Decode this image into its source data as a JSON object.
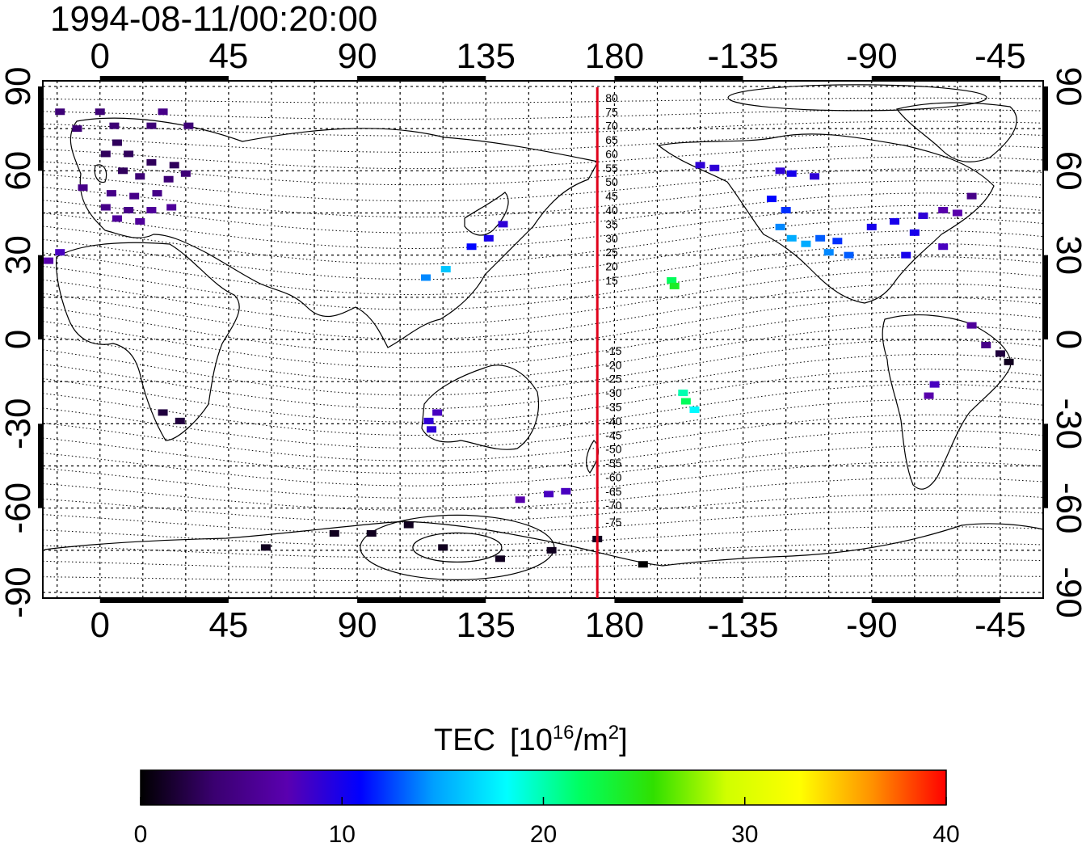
{
  "timestamp": "1994-08-11/00:20:00",
  "axes": {
    "lon_ticks": [
      "0",
      "45",
      "90",
      "135",
      "180",
      "-135",
      "-90",
      "-45"
    ],
    "lon_values": [
      0,
      45,
      90,
      135,
      180,
      225,
      270,
      315
    ],
    "lat_ticks": [
      "90",
      "60",
      "30",
      "0",
      "-30",
      "-60",
      "-90"
    ],
    "lat_values": [
      90,
      60,
      30,
      0,
      -30,
      -60,
      -90
    ],
    "lon_range": [
      -20,
      330
    ],
    "lat_range": [
      -92,
      92
    ]
  },
  "meridian_line": {
    "lon": 174,
    "color": "#e0001a",
    "labels": [
      "80",
      "75",
      "70",
      "65",
      "60",
      "55",
      "50",
      "45",
      "40",
      "35",
      "30",
      "25",
      "20",
      "15",
      "-15",
      "-20",
      "-25",
      "-30",
      "-35",
      "-40",
      "-45",
      "-50",
      "-55",
      "-60",
      "-65",
      "-70",
      "-75"
    ],
    "label_lats": [
      86,
      81,
      76,
      71,
      66,
      61,
      56,
      51,
      46,
      41,
      36,
      31,
      26,
      21,
      -4,
      -9,
      -14,
      -19,
      -24,
      -29,
      -34,
      -39,
      -44,
      -49,
      -54,
      -59,
      -65
    ]
  },
  "colorbar": {
    "title": "TEC",
    "unit_prefix": "[10",
    "unit_exp": "16",
    "unit_mid": "/m",
    "unit_exp2": "2",
    "unit_suffix": "]",
    "ticks": [
      "0",
      "10",
      "20",
      "30",
      "40"
    ],
    "tick_values": [
      0,
      10,
      20,
      30,
      40
    ],
    "range": [
      0,
      40
    ],
    "stops": [
      "#000000",
      "#3a0070",
      "#5a00b0",
      "#0000ff",
      "#00a0ff",
      "#00ffff",
      "#00ff60",
      "#30e000",
      "#d0ff00",
      "#ffff00",
      "#ff9000",
      "#ff0000"
    ]
  },
  "chart_data": {
    "type": "scatter",
    "x_label": "",
    "y_label": "",
    "points": [
      {
        "lon": -14,
        "lat": 81,
        "tec": 4
      },
      {
        "lon": 0,
        "lat": 81,
        "tec": 4
      },
      {
        "lon": 22,
        "lat": 81,
        "tec": 5
      },
      {
        "lon": -8,
        "lat": 75,
        "tec": 4
      },
      {
        "lon": 5,
        "lat": 76,
        "tec": 4
      },
      {
        "lon": 18,
        "lat": 76,
        "tec": 4
      },
      {
        "lon": 31,
        "lat": 76,
        "tec": 4
      },
      {
        "lon": 6,
        "lat": 70,
        "tec": 3
      },
      {
        "lon": 2,
        "lat": 66,
        "tec": 3
      },
      {
        "lon": 10,
        "lat": 66,
        "tec": 3
      },
      {
        "lon": 18,
        "lat": 63,
        "tec": 3
      },
      {
        "lon": 26,
        "lat": 62,
        "tec": 3
      },
      {
        "lon": 8,
        "lat": 60,
        "tec": 3
      },
      {
        "lon": 14,
        "lat": 58,
        "tec": 4
      },
      {
        "lon": 24,
        "lat": 57,
        "tec": 4
      },
      {
        "lon": 30,
        "lat": 59,
        "tec": 4
      },
      {
        "lon": -6,
        "lat": 54,
        "tec": 5
      },
      {
        "lon": 4,
        "lat": 52,
        "tec": 5
      },
      {
        "lon": 12,
        "lat": 51,
        "tec": 5
      },
      {
        "lon": 20,
        "lat": 52,
        "tec": 5
      },
      {
        "lon": 2,
        "lat": 47,
        "tec": 5
      },
      {
        "lon": 10,
        "lat": 46,
        "tec": 5
      },
      {
        "lon": 18,
        "lat": 46,
        "tec": 6
      },
      {
        "lon": 25,
        "lat": 47,
        "tec": 6
      },
      {
        "lon": 14,
        "lat": 42,
        "tec": 6
      },
      {
        "lon": 6,
        "lat": 43,
        "tec": 6
      },
      {
        "lon": -18,
        "lat": 28,
        "tec": 7
      },
      {
        "lon": -14,
        "lat": 31,
        "tec": 8
      },
      {
        "lon": 22,
        "lat": -26,
        "tec": 2
      },
      {
        "lon": 28,
        "lat": -29,
        "tec": 2
      },
      {
        "lon": 141,
        "lat": 41,
        "tec": 9
      },
      {
        "lon": 136,
        "lat": 36,
        "tec": 10
      },
      {
        "lon": 130,
        "lat": 33,
        "tec": 11
      },
      {
        "lon": 121,
        "lat": 25,
        "tec": 16
      },
      {
        "lon": 114,
        "lat": 22,
        "tec": 14
      },
      {
        "lon": 116,
        "lat": -32,
        "tec": 9
      },
      {
        "lon": 115,
        "lat": -29,
        "tec": 9
      },
      {
        "lon": 118,
        "lat": -26,
        "tec": 8
      },
      {
        "lon": 147,
        "lat": -57,
        "tec": 7
      },
      {
        "lon": 157,
        "lat": -55,
        "tec": 8
      },
      {
        "lon": 163,
        "lat": -54,
        "tec": 8
      },
      {
        "lon": 82,
        "lat": -69,
        "tec": 1
      },
      {
        "lon": 95,
        "lat": -69,
        "tec": 1
      },
      {
        "lon": 108,
        "lat": -66,
        "tec": 1
      },
      {
        "lon": 120,
        "lat": -74,
        "tec": 1
      },
      {
        "lon": 140,
        "lat": -78,
        "tec": 1
      },
      {
        "lon": 158,
        "lat": -75,
        "tec": 1
      },
      {
        "lon": 174,
        "lat": -71,
        "tec": 1
      },
      {
        "lon": 190,
        "lat": -80,
        "tec": 0
      },
      {
        "lon": 58,
        "lat": -74,
        "tec": 1
      },
      {
        "lon": 200,
        "lat": 21,
        "tec": 22
      },
      {
        "lon": 201,
        "lat": 19,
        "tec": 24
      },
      {
        "lon": 204,
        "lat": -19,
        "tec": 20
      },
      {
        "lon": 205,
        "lat": -22,
        "tec": 22
      },
      {
        "lon": 208,
        "lat": -25,
        "tec": 18
      },
      {
        "lon": 210,
        "lat": 62,
        "tec": 9
      },
      {
        "lon": 215,
        "lat": 61,
        "tec": 9
      },
      {
        "lon": 238,
        "lat": 60,
        "tec": 9
      },
      {
        "lon": 242,
        "lat": 59,
        "tec": 10
      },
      {
        "lon": 250,
        "lat": 58,
        "tec": 9
      },
      {
        "lon": 235,
        "lat": 50,
        "tec": 11
      },
      {
        "lon": 240,
        "lat": 46,
        "tec": 12
      },
      {
        "lon": 238,
        "lat": 40,
        "tec": 14
      },
      {
        "lon": 242,
        "lat": 36,
        "tec": 15
      },
      {
        "lon": 247,
        "lat": 34,
        "tec": 15
      },
      {
        "lon": 252,
        "lat": 36,
        "tec": 13
      },
      {
        "lon": 258,
        "lat": 35,
        "tec": 12
      },
      {
        "lon": 262,
        "lat": 30,
        "tec": 13
      },
      {
        "lon": 255,
        "lat": 31,
        "tec": 14
      },
      {
        "lon": 270,
        "lat": 40,
        "tec": 10
      },
      {
        "lon": 278,
        "lat": 42,
        "tec": 10
      },
      {
        "lon": 285,
        "lat": 38,
        "tec": 10
      },
      {
        "lon": 288,
        "lat": 44,
        "tec": 9
      },
      {
        "lon": 295,
        "lat": 46,
        "tec": 7
      },
      {
        "lon": 300,
        "lat": 45,
        "tec": 7
      },
      {
        "lon": 282,
        "lat": 30,
        "tec": 10
      },
      {
        "lon": 295,
        "lat": 33,
        "tec": 8
      },
      {
        "lon": 305,
        "lat": 51,
        "tec": 5
      },
      {
        "lon": 305,
        "lat": 5,
        "tec": 6
      },
      {
        "lon": 310,
        "lat": -2,
        "tec": 5
      },
      {
        "lon": 315,
        "lat": -5,
        "tec": 2
      },
      {
        "lon": 318,
        "lat": -8,
        "tec": 1
      },
      {
        "lon": 292,
        "lat": -16,
        "tec": 8
      },
      {
        "lon": 290,
        "lat": -20,
        "tec": 7
      }
    ]
  }
}
